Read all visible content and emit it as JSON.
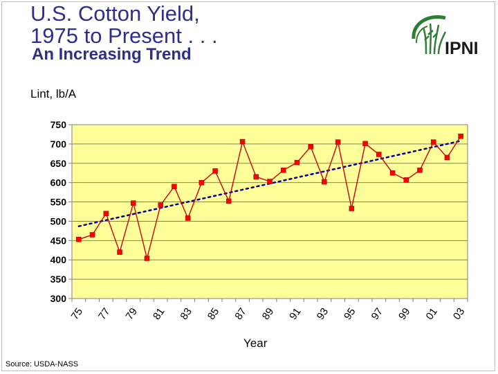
{
  "title_line1": "U.S. Cotton Yield,",
  "title_line2": "1975 to Present . . .",
  "subtitle": "An Increasing Trend",
  "logo_text": "IPNI",
  "source": "Source: USDA-NASS",
  "colors": {
    "title": "#2e2e8c",
    "plot_background": "#ffff99",
    "series": "#cc0000",
    "marker": "#ff0000",
    "trend": "#000099",
    "logo_green": "#2e7d32"
  },
  "chart_data": {
    "type": "line",
    "xlabel": "Year",
    "ylabel": "Lint, lb/A",
    "ylim": [
      300,
      750
    ],
    "yticks": [
      300,
      350,
      400,
      450,
      500,
      550,
      600,
      650,
      700,
      750
    ],
    "ytick_labels": [
      "300",
      "350",
      "400",
      "450",
      "500",
      "550",
      "600",
      "650",
      "700",
      "750"
    ],
    "xtick_labels": [
      "75",
      "77",
      "79",
      "81",
      "83",
      "85",
      "87",
      "89",
      "91",
      "93",
      "95",
      "97",
      "99",
      "01",
      "03"
    ],
    "x": [
      1975,
      1976,
      1977,
      1978,
      1979,
      1980,
      1981,
      1982,
      1983,
      1984,
      1985,
      1986,
      1987,
      1988,
      1989,
      1990,
      1991,
      1992,
      1993,
      1994,
      1995,
      1996,
      1997,
      1998,
      1999,
      2000,
      2001,
      2002,
      2003
    ],
    "series": [
      {
        "values": [
          453,
          465,
          520,
          420,
          547,
          404,
          542,
          590,
          508,
          600,
          630,
          552,
          706,
          615,
          603,
          632,
          652,
          693,
          602,
          705,
          533,
          701,
          673,
          625,
          607,
          632,
          705,
          665,
          720
        ]
      }
    ],
    "trendline": {
      "style": "dotted",
      "values_at_ends": [
        487,
        708
      ]
    },
    "grid": true,
    "legend": "none"
  }
}
